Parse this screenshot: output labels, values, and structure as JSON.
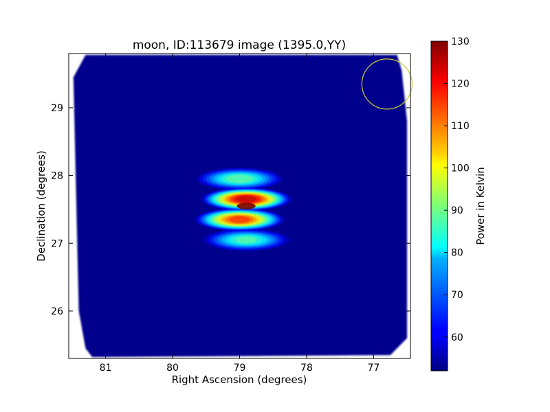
{
  "chart_data": {
    "type": "heatmap",
    "title": "moon, ID:113679 image (1395.0,YY)",
    "xlabel": "Right Ascension (degrees)",
    "ylabel": "Declination (degrees)",
    "xlim": [
      81.55,
      76.45
    ],
    "ylim": [
      25.3,
      29.8
    ],
    "x_ticks": [
      81,
      80,
      79,
      78,
      77
    ],
    "y_ticks": [
      26,
      27,
      28,
      29
    ],
    "colorbar": {
      "label": "Power in Kelvin",
      "range": [
        52,
        130
      ],
      "ticks": [
        60,
        70,
        80,
        90,
        100,
        110,
        120,
        130
      ],
      "colormap": "jet"
    },
    "background_level": 53,
    "source": {
      "ra_center": 78.95,
      "dec_center": 27.5,
      "peak_value": 130,
      "peak_ra": 78.9,
      "peak_dec": 27.55,
      "fringe_bands_dec": [
        27.05,
        27.35,
        27.65,
        27.95
      ],
      "fringe_band_peaks": [
        90,
        118,
        126,
        92
      ]
    },
    "beam_circle": {
      "ra": 76.8,
      "dec": 29.35,
      "radius_deg": 0.37,
      "color": "#cccc33"
    },
    "footprint_corners": [
      [
        81.3,
        29.78
      ],
      [
        76.65,
        29.78
      ],
      [
        76.58,
        29.55
      ],
      [
        76.5,
        28.8
      ],
      [
        76.5,
        25.6
      ],
      [
        76.75,
        25.35
      ],
      [
        81.2,
        25.32
      ],
      [
        81.3,
        25.45
      ],
      [
        81.4,
        26.0
      ],
      [
        81.48,
        29.45
      ]
    ]
  }
}
